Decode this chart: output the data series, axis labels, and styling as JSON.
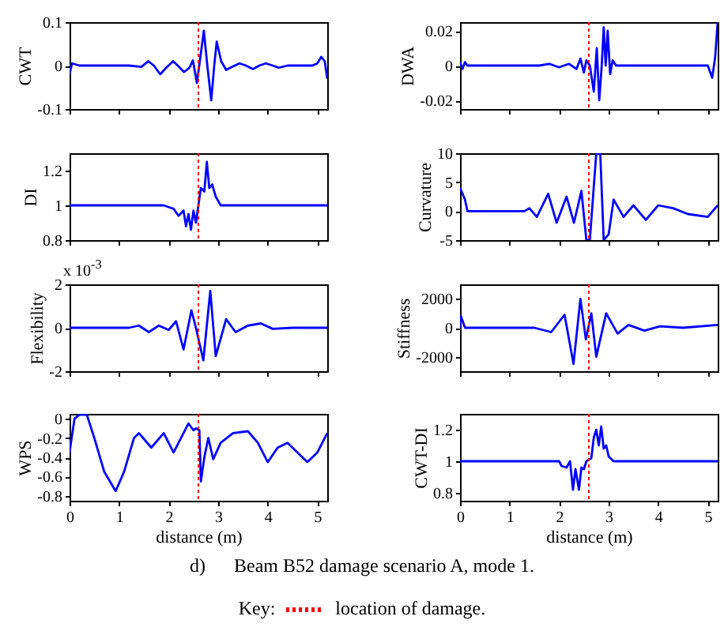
{
  "chart_data": [
    {
      "type": "line",
      "ylabel": "CWT",
      "xlim": [
        0,
        5.2
      ],
      "xticks": [
        0,
        1,
        2,
        3,
        4,
        5
      ],
      "ylim": [
        -0.1,
        0.1
      ],
      "yticks": [
        -0.1,
        0,
        0.1
      ],
      "tick_labels": "y",
      "ref_lines": [
        {
          "axis": "x",
          "value": 2.6,
          "color": "#ff0000",
          "line_style": "dotted"
        }
      ],
      "series": [
        {
          "color": "#0000ff",
          "x": [
            0,
            0.05,
            0.2,
            1.2,
            1.45,
            1.59,
            1.7,
            1.83,
            1.95,
            2.09,
            2.2,
            2.31,
            2.42,
            2.49,
            2.57,
            2.64,
            2.71,
            2.78,
            2.86,
            2.92,
            2.97,
            3.06,
            3.16,
            3.3,
            3.43,
            3.56,
            3.7,
            3.83,
            3.96,
            4.1,
            4.22,
            4.4,
            4.6,
            4.9,
            5.0,
            5.08,
            5.15,
            5.2
          ],
          "values": [
            -0.02,
            0.005,
            0,
            0,
            -0.003,
            0.01,
            0,
            -0.02,
            -0.005,
            0.01,
            -0.002,
            -0.015,
            -0.005,
            0.012,
            -0.04,
            0.02,
            0.08,
            0,
            -0.08,
            0,
            0.055,
            0.01,
            -0.01,
            -0.002,
            0.005,
            0,
            -0.008,
            0,
            0.005,
            0,
            -0.005,
            0,
            0,
            0,
            0.005,
            0.02,
            0.01,
            -0.03
          ]
        }
      ]
    },
    {
      "type": "line",
      "ylabel": "DWA",
      "xlim": [
        0,
        5.2
      ],
      "xticks": [
        0,
        1,
        2,
        3,
        4,
        5
      ],
      "ylim": [
        -0.025,
        0.025
      ],
      "yticks": [
        -0.02,
        0,
        0.02
      ],
      "tick_labels": "y",
      "ref_lines": [
        {
          "axis": "x",
          "value": 2.6,
          "color": "#ff0000",
          "line_style": "dotted"
        }
      ],
      "series": [
        {
          "color": "#0000ff",
          "x": [
            0,
            0.05,
            0.1,
            0.15,
            1.6,
            1.8,
            2.0,
            2.2,
            2.35,
            2.43,
            2.5,
            2.55,
            2.62,
            2.7,
            2.76,
            2.81,
            2.86,
            2.9,
            2.94,
            2.98,
            3.03,
            3.08,
            3.15,
            5.0,
            5.09,
            5.15,
            5.2
          ],
          "values": [
            0.002,
            -0.002,
            0.002,
            0,
            0,
            0.001,
            -0.001,
            0.001,
            -0.002,
            0.004,
            -0.004,
            0.003,
            0,
            -0.015,
            0.01,
            -0.02,
            0,
            0.022,
            0,
            0.02,
            -0.005,
            0.003,
            0,
            0,
            -0.007,
            0.005,
            0.025
          ]
        }
      ]
    },
    {
      "type": "line",
      "ylabel": "DI",
      "xlim": [
        0,
        5.2
      ],
      "xticks": [
        0,
        1,
        2,
        3,
        4,
        5
      ],
      "ylim": [
        0.8,
        1.3
      ],
      "yticks": [
        0.8,
        1,
        1.2
      ],
      "tick_labels": "y",
      "ref_lines": [
        {
          "axis": "x",
          "value": 2.6,
          "color": "#ff0000",
          "line_style": "dotted"
        }
      ],
      "series": [
        {
          "color": "#0000ff",
          "x": [
            0,
            1.9,
            2.0,
            2.1,
            2.2,
            2.3,
            2.35,
            2.4,
            2.45,
            2.5,
            2.55,
            2.6,
            2.65,
            2.72,
            2.77,
            2.82,
            2.88,
            2.95,
            3.05,
            5.2
          ],
          "values": [
            1,
            1,
            0.99,
            0.98,
            0.94,
            0.97,
            0.88,
            0.95,
            0.86,
            0.97,
            0.9,
            1.0,
            1.1,
            1.08,
            1.25,
            1.1,
            1.12,
            1.05,
            1.0,
            1
          ]
        }
      ]
    },
    {
      "type": "line",
      "ylabel": "Curvature",
      "xlim": [
        0,
        5.2
      ],
      "xticks": [
        0,
        1,
        2,
        3,
        4,
        5
      ],
      "ylim": [
        -5,
        10
      ],
      "yticks": [
        -5,
        0,
        5,
        10
      ],
      "tick_labels": "y",
      "ref_lines": [
        {
          "axis": "x",
          "value": 2.6,
          "color": "#ff0000",
          "line_style": "dotted"
        }
      ],
      "series": [
        {
          "color": "#0000ff",
          "x": [
            0,
            0.1,
            0.15,
            1.3,
            1.4,
            1.55,
            1.78,
            1.95,
            2.15,
            2.3,
            2.45,
            2.55,
            2.62,
            2.75,
            2.83,
            2.9,
            3.0,
            3.1,
            3.3,
            3.5,
            3.75,
            4.0,
            4.3,
            4.6,
            5.0,
            5.2
          ],
          "values": [
            4,
            2,
            0,
            0,
            0.5,
            -1,
            3,
            -2,
            2.5,
            -2,
            3.5,
            -5,
            -5,
            10,
            10,
            -5,
            -4,
            2,
            -1,
            1,
            -1.5,
            1,
            0.5,
            -0.5,
            -1,
            1
          ]
        }
      ]
    },
    {
      "type": "line",
      "ylabel": "Flexibility",
      "annotations": [
        "x 10$^{-3}$"
      ],
      "xlim": [
        0,
        5.2
      ],
      "xticks": [
        0,
        1,
        2,
        3,
        4,
        5
      ],
      "ylim": [
        -2,
        2
      ],
      "yticks": [
        -2,
        0,
        2
      ],
      "tick_labels": "y",
      "ref_lines": [
        {
          "axis": "x",
          "value": 2.6,
          "color": "#ff0000",
          "line_style": "dotted"
        }
      ],
      "series": [
        {
          "color": "#0000ff",
          "x": [
            0,
            1.2,
            1.4,
            1.6,
            1.8,
            2.0,
            2.15,
            2.3,
            2.46,
            2.55,
            2.7,
            2.84,
            2.95,
            3.16,
            3.35,
            3.6,
            3.86,
            4.1,
            4.5,
            5.2
          ],
          "values": [
            0,
            0,
            0.1,
            -0.2,
            0.1,
            -0.1,
            0.3,
            -1.0,
            0.8,
            0,
            -1.5,
            1.7,
            -1.3,
            0.4,
            -0.2,
            0.1,
            0.2,
            -0.05,
            0,
            0
          ]
        }
      ]
    },
    {
      "type": "line",
      "ylabel": "Stiffness",
      "xlim": [
        0,
        5.2
      ],
      "xticks": [
        0,
        1,
        2,
        3,
        4,
        5
      ],
      "ylim": [
        -3000,
        3000
      ],
      "yticks": [
        -2000,
        0,
        2000
      ],
      "tick_labels": "y",
      "ref_lines": [
        {
          "axis": "x",
          "value": 2.6,
          "color": "#ff0000",
          "line_style": "dotted"
        }
      ],
      "series": [
        {
          "color": "#0000ff",
          "x": [
            0,
            0.02,
            0.1,
            1.5,
            1.84,
            2.11,
            2.29,
            2.43,
            2.54,
            2.65,
            2.75,
            2.95,
            3.18,
            3.4,
            3.72,
            4.04,
            4.5,
            5.2
          ],
          "values": [
            0,
            800,
            0,
            0,
            -300,
            900,
            -2500,
            2000,
            -800,
            1000,
            -2000,
            1000,
            -400,
            200,
            -200,
            100,
            0,
            200
          ]
        }
      ]
    },
    {
      "type": "line",
      "ylabel": "WPS",
      "xlabel": "distance (m)",
      "xlim": [
        0,
        5.2
      ],
      "xticks": [
        0,
        1,
        2,
        3,
        4,
        5
      ],
      "ylim": [
        -0.85,
        0.05
      ],
      "yticks": [
        -0.8,
        -0.6,
        -0.4,
        -0.2,
        0
      ],
      "ref_lines": [
        {
          "axis": "x",
          "value": 2.6,
          "color": "#ff0000",
          "line_style": "dotted"
        }
      ],
      "series": [
        {
          "color": "#0000ff",
          "x": [
            0,
            0.1,
            0.2,
            0.35,
            0.5,
            0.7,
            0.93,
            1.1,
            1.3,
            1.4,
            1.65,
            1.9,
            2.1,
            2.3,
            2.4,
            2.5,
            2.55,
            2.62,
            2.65,
            2.72,
            2.8,
            2.9,
            3.05,
            3.3,
            3.6,
            3.8,
            4.0,
            4.2,
            4.4,
            4.6,
            4.8,
            5.0,
            5.2
          ],
          "values": [
            -0.35,
            0,
            0.04,
            0.04,
            -0.2,
            -0.55,
            -0.75,
            -0.55,
            -0.2,
            -0.15,
            -0.3,
            -0.15,
            -0.35,
            -0.15,
            -0.05,
            -0.12,
            -0.1,
            -0.12,
            -0.65,
            -0.4,
            -0.2,
            -0.42,
            -0.25,
            -0.15,
            -0.13,
            -0.25,
            -0.45,
            -0.3,
            -0.25,
            -0.35,
            -0.45,
            -0.35,
            -0.15
          ]
        }
      ]
    },
    {
      "type": "line",
      "ylabel": "CWT-DI",
      "xlabel": "distance (m)",
      "xlim": [
        0,
        5.2
      ],
      "xticks": [
        0,
        1,
        2,
        3,
        4,
        5
      ],
      "ylim": [
        0.75,
        1.3
      ],
      "yticks": [
        0.8,
        1,
        1.2
      ],
      "annotations": [
        "d)      Beam B52 damage scenario A, mode 1.",
        "Key:"
      ],
      "ref_lines": [
        {
          "axis": "x",
          "value": 2.6,
          "color": "#ff0000",
          "line_style": "dotted",
          "label": "location of damage."
        }
      ],
      "series": [
        {
          "color": "#0000ff",
          "x": [
            0,
            2.0,
            2.05,
            2.15,
            2.22,
            2.28,
            2.33,
            2.4,
            2.45,
            2.5,
            2.55,
            2.65,
            2.7,
            2.75,
            2.8,
            2.85,
            2.9,
            2.95,
            3.0,
            3.1,
            5.2
          ],
          "values": [
            1,
            1,
            0.97,
            0.96,
            1.0,
            0.82,
            0.95,
            0.82,
            0.96,
            0.95,
            1.0,
            1.02,
            1.15,
            1.2,
            1.1,
            1.22,
            1.08,
            1.1,
            1.03,
            1.0,
            1.0
          ]
        }
      ]
    }
  ]
}
